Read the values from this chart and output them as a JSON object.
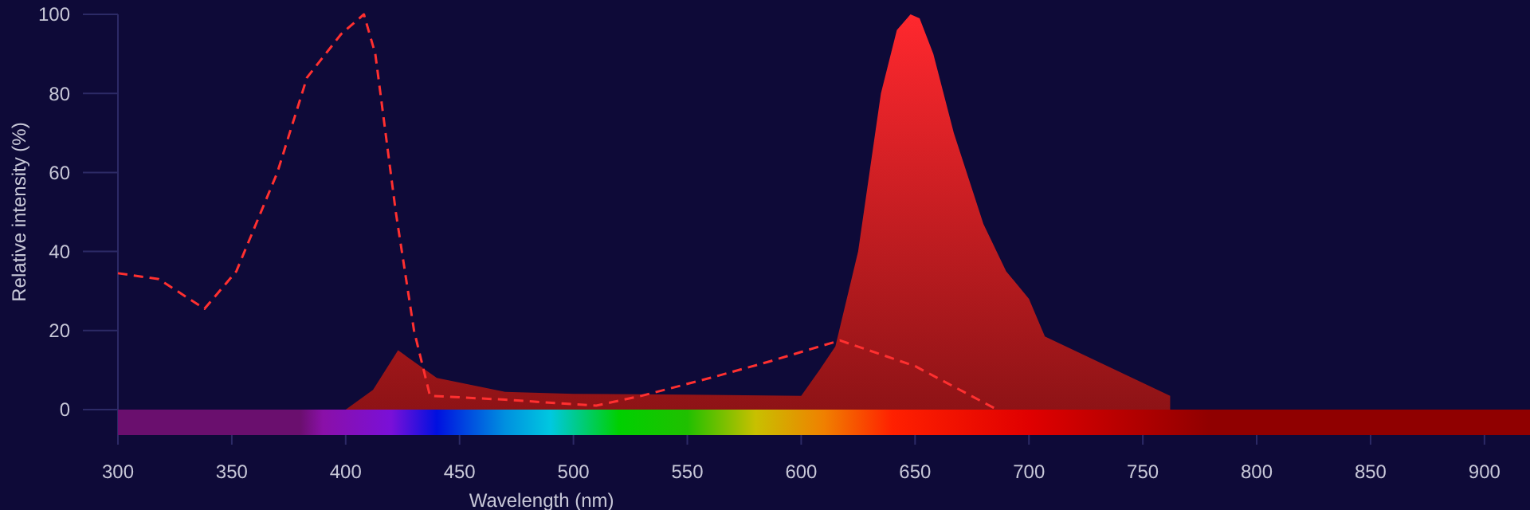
{
  "chart_data": {
    "type": "area",
    "xlabel": "Wavelength (nm)",
    "ylabel": "Relative intensity (%)",
    "xlim": [
      300,
      920
    ],
    "xticks": [
      300,
      350,
      400,
      450,
      500,
      550,
      600,
      650,
      700,
      750,
      800,
      850,
      900
    ],
    "ylim": [
      0,
      100
    ],
    "yticks": [
      0,
      20,
      40,
      60,
      80,
      100
    ],
    "grid": false,
    "series": [
      {
        "color": "#c41a1e",
        "x": [
          400,
          412,
          423,
          440,
          470,
          500,
          550,
          600,
          608,
          615,
          625,
          635,
          642,
          648,
          652,
          658,
          667,
          680,
          690,
          700,
          707,
          762,
          762
        ],
        "values": [
          0,
          5,
          15,
          8,
          4.5,
          4,
          3.8,
          3.5,
          10,
          16,
          40,
          80,
          96,
          100,
          99,
          90,
          70,
          47,
          35,
          28,
          18.5,
          3.5,
          0
        ]
      },
      {
        "type": "line",
        "color": "#ff3030",
        "line_style": "dashed",
        "x": [
          300,
          318,
          338,
          352,
          370,
          383,
          398,
          408,
          413,
          422,
          430,
          437,
          470,
          510,
          530,
          560,
          585,
          617,
          650,
          686
        ],
        "values": [
          34.5,
          33,
          25.5,
          35,
          60,
          84,
          95,
          100,
          90,
          50,
          20,
          3.5,
          2.5,
          1,
          3.5,
          8,
          12,
          17.5,
          11,
          0
        ]
      }
    ]
  }
}
